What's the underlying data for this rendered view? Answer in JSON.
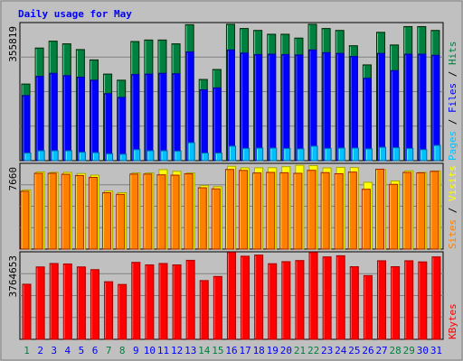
{
  "chart_data": [
    {
      "type": "bar",
      "title": "Daily usage for May",
      "panel": "hits-files-pages",
      "ymax_label": "355819",
      "ylim": [
        0,
        355819
      ],
      "categories": [
        "1",
        "2",
        "3",
        "4",
        "5",
        "6",
        "7",
        "8",
        "9",
        "10",
        "11",
        "12",
        "13",
        "14",
        "15",
        "16",
        "17",
        "18",
        "19",
        "20",
        "21",
        "22",
        "23",
        "24",
        "25",
        "26",
        "27",
        "28",
        "29",
        "30",
        "31"
      ],
      "weekend_days": [
        "1",
        "7",
        "8",
        "14",
        "15",
        "21",
        "22",
        "28",
        "29"
      ],
      "series": [
        {
          "name": "Hits",
          "color": "#008040",
          "values": [
            200000,
            294000,
            312000,
            305000,
            290000,
            263000,
            226000,
            210000,
            311000,
            315000,
            315000,
            305000,
            355000,
            212000,
            238000,
            356000,
            345000,
            340000,
            330000,
            330000,
            320000,
            356000,
            345000,
            340000,
            300000,
            250000,
            335000,
            302000,
            350000,
            350000,
            340000
          ]
        },
        {
          "name": "Files",
          "color": "#0000ff",
          "values": [
            170000,
            220000,
            228000,
            222000,
            218000,
            210000,
            175000,
            165000,
            225000,
            226000,
            228000,
            227000,
            284000,
            185000,
            190000,
            289000,
            281000,
            277000,
            278000,
            277000,
            276000,
            289000,
            282000,
            280000,
            272000,
            215000,
            280000,
            235000,
            278000,
            278000,
            275000
          ]
        },
        {
          "name": "Pages",
          "color": "#00c0ff",
          "values": [
            20000,
            26000,
            26000,
            26000,
            22000,
            21000,
            18000,
            17000,
            29000,
            26000,
            26000,
            25000,
            47000,
            20000,
            20000,
            38000,
            32000,
            33000,
            33000,
            32000,
            31000,
            38000,
            32000,
            33000,
            33000,
            31000,
            35000,
            34000,
            32000,
            29000,
            40000
          ]
        }
      ]
    },
    {
      "type": "bar",
      "panel": "visits-sites",
      "ymax_label": "7660",
      "ylim": [
        0,
        7660
      ],
      "categories": [
        "1",
        "2",
        "3",
        "4",
        "5",
        "6",
        "7",
        "8",
        "9",
        "10",
        "11",
        "12",
        "13",
        "14",
        "15",
        "16",
        "17",
        "18",
        "19",
        "20",
        "21",
        "22",
        "23",
        "24",
        "25",
        "26",
        "27",
        "28",
        "29",
        "30",
        "31"
      ],
      "series": [
        {
          "name": "Visits",
          "color": "#ffff00",
          "values": [
            5400,
            7050,
            7000,
            7000,
            6900,
            6750,
            5300,
            5150,
            6950,
            6950,
            7250,
            7100,
            6950,
            5800,
            5700,
            7560,
            7420,
            7420,
            7430,
            7520,
            7650,
            7620,
            7410,
            7460,
            7440,
            6100,
            7250,
            6220,
            7140,
            7000,
            7130
          ]
        },
        {
          "name": "Sites",
          "color": "#ff8000",
          "values": [
            5280,
            6920,
            6920,
            6830,
            6720,
            6550,
            5150,
            5000,
            6850,
            6850,
            6780,
            6750,
            6870,
            5600,
            5500,
            7270,
            7180,
            6950,
            7000,
            6970,
            6920,
            7190,
            6980,
            6880,
            7030,
            5460,
            7290,
            5910,
            7000,
            6960,
            7100
          ]
        }
      ]
    },
    {
      "type": "bar",
      "panel": "kbytes",
      "ymax_label": "3764653",
      "ylim": [
        0,
        3764653
      ],
      "categories": [
        "1",
        "2",
        "3",
        "4",
        "5",
        "6",
        "7",
        "8",
        "9",
        "10",
        "11",
        "12",
        "13",
        "14",
        "15",
        "16",
        "17",
        "18",
        "19",
        "20",
        "21",
        "22",
        "23",
        "24",
        "25",
        "26",
        "27",
        "28",
        "29",
        "30",
        "31"
      ],
      "series": [
        {
          "name": "KBytes",
          "color": "#ff0000",
          "values": [
            2420000,
            3180000,
            3330000,
            3310000,
            3180000,
            3060000,
            2530000,
            2410000,
            3380000,
            3270000,
            3330000,
            3270000,
            3470000,
            2580000,
            2760000,
            3820000,
            3650000,
            3700000,
            3320000,
            3410000,
            3460000,
            3820000,
            3620000,
            3670000,
            3190000,
            2800000,
            3450000,
            3190000,
            3450000,
            3400000,
            3620000
          ]
        }
      ]
    }
  ],
  "colors": {
    "background": "#c0c0c0",
    "title_color": "#0000ff",
    "axis_label_color": "#000000",
    "weekday_label_color": "#0000ff",
    "weekend_label_color": "#008040",
    "gridline_color": "#808080"
  }
}
